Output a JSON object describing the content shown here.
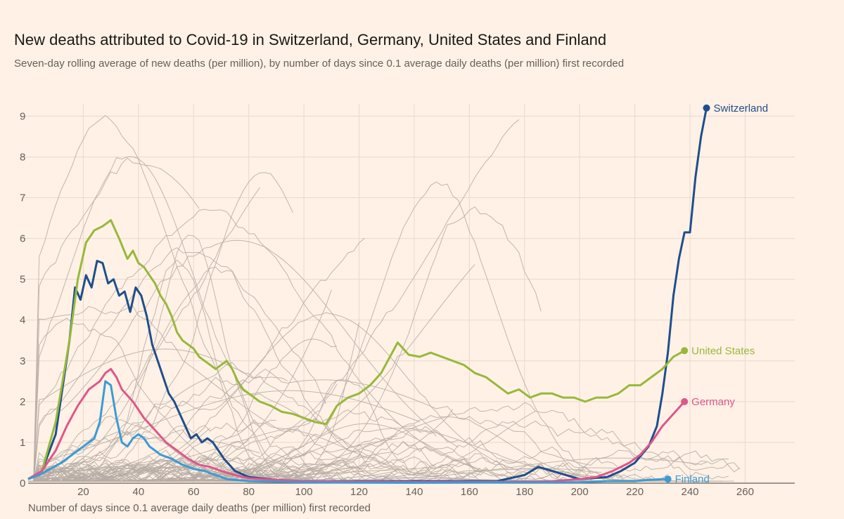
{
  "chart_data": {
    "type": "line",
    "title": "New deaths attributed to Covid-19 in Switzerland, Germany, United States and Finland",
    "subtitle": "Seven-day rolling average of new deaths (per million), by number of days since 0.1 average daily deaths (per million) first recorded",
    "xlabel": "Number of days since 0.1 average daily deaths (per million) first recorded",
    "ylabel": "",
    "xlim": [
      0,
      278
    ],
    "ylim": [
      0,
      9.3
    ],
    "x_ticks": [
      20,
      40,
      60,
      80,
      100,
      120,
      140,
      160,
      180,
      200,
      220,
      240,
      260
    ],
    "x_tick_labels": [
      "20",
      "40",
      "60",
      "80",
      "100",
      "120",
      "140",
      "160",
      "180",
      "200",
      "220",
      "240",
      "260"
    ],
    "y_ticks": [
      0,
      1,
      2,
      3,
      4,
      5,
      6,
      7,
      8,
      9
    ],
    "y_tick_labels": [
      "0",
      "1",
      "2",
      "3",
      "4",
      "5",
      "6",
      "7",
      "8",
      "9"
    ],
    "grid": "horizontal",
    "background_series_color": "#b6aca4",
    "series": [
      {
        "name": "Switzerland",
        "color": "#1f4e8c",
        "points": [
          [
            0,
            0.1
          ],
          [
            5,
            0.3
          ],
          [
            10,
            1.2
          ],
          [
            15,
            3.5
          ],
          [
            17,
            4.8
          ],
          [
            19,
            4.5
          ],
          [
            21,
            5.1
          ],
          [
            23,
            4.8
          ],
          [
            25,
            5.45
          ],
          [
            27,
            5.4
          ],
          [
            29,
            4.9
          ],
          [
            31,
            5.0
          ],
          [
            33,
            4.6
          ],
          [
            35,
            4.7
          ],
          [
            37,
            4.2
          ],
          [
            39,
            4.8
          ],
          [
            41,
            4.6
          ],
          [
            43,
            4.1
          ],
          [
            45,
            3.4
          ],
          [
            47,
            3.0
          ],
          [
            49,
            2.6
          ],
          [
            51,
            2.2
          ],
          [
            53,
            2.0
          ],
          [
            55,
            1.7
          ],
          [
            57,
            1.4
          ],
          [
            59,
            1.1
          ],
          [
            61,
            1.2
          ],
          [
            63,
            1.0
          ],
          [
            65,
            1.1
          ],
          [
            67,
            1.0
          ],
          [
            69,
            0.8
          ],
          [
            71,
            0.6
          ],
          [
            73,
            0.45
          ],
          [
            75,
            0.3
          ],
          [
            80,
            0.15
          ],
          [
            90,
            0.08
          ],
          [
            100,
            0.05
          ],
          [
            120,
            0.05
          ],
          [
            140,
            0.05
          ],
          [
            160,
            0.05
          ],
          [
            170,
            0.05
          ],
          [
            180,
            0.2
          ],
          [
            185,
            0.4
          ],
          [
            190,
            0.3
          ],
          [
            195,
            0.2
          ],
          [
            200,
            0.1
          ],
          [
            210,
            0.15
          ],
          [
            215,
            0.3
          ],
          [
            220,
            0.5
          ],
          [
            225,
            0.9
          ],
          [
            228,
            1.4
          ],
          [
            230,
            2.2
          ],
          [
            232,
            3.2
          ],
          [
            234,
            4.6
          ],
          [
            236,
            5.5
          ],
          [
            238,
            6.15
          ],
          [
            240,
            6.15
          ],
          [
            242,
            7.5
          ],
          [
            244,
            8.5
          ],
          [
            246,
            9.2
          ]
        ]
      },
      {
        "name": "United States",
        "color": "#96b93b",
        "points": [
          [
            0,
            0.1
          ],
          [
            5,
            0.3
          ],
          [
            10,
            1.5
          ],
          [
            15,
            3.5
          ],
          [
            18,
            5.0
          ],
          [
            21,
            5.9
          ],
          [
            24,
            6.2
          ],
          [
            27,
            6.3
          ],
          [
            30,
            6.45
          ],
          [
            33,
            6.0
          ],
          [
            36,
            5.5
          ],
          [
            38,
            5.7
          ],
          [
            40,
            5.4
          ],
          [
            42,
            5.3
          ],
          [
            44,
            5.1
          ],
          [
            46,
            4.9
          ],
          [
            48,
            4.6
          ],
          [
            50,
            4.4
          ],
          [
            52,
            4.1
          ],
          [
            54,
            3.7
          ],
          [
            56,
            3.5
          ],
          [
            58,
            3.4
          ],
          [
            60,
            3.3
          ],
          [
            62,
            3.1
          ],
          [
            64,
            3.0
          ],
          [
            66,
            2.9
          ],
          [
            68,
            2.8
          ],
          [
            70,
            2.9
          ],
          [
            72,
            3.0
          ],
          [
            74,
            2.8
          ],
          [
            76,
            2.5
          ],
          [
            78,
            2.3
          ],
          [
            80,
            2.2
          ],
          [
            84,
            2.0
          ],
          [
            88,
            1.9
          ],
          [
            92,
            1.75
          ],
          [
            96,
            1.7
          ],
          [
            100,
            1.6
          ],
          [
            104,
            1.5
          ],
          [
            108,
            1.45
          ],
          [
            112,
            1.9
          ],
          [
            116,
            2.1
          ],
          [
            120,
            2.2
          ],
          [
            124,
            2.4
          ],
          [
            128,
            2.7
          ],
          [
            132,
            3.2
          ],
          [
            134,
            3.45
          ],
          [
            138,
            3.15
          ],
          [
            142,
            3.1
          ],
          [
            146,
            3.2
          ],
          [
            150,
            3.1
          ],
          [
            154,
            3.0
          ],
          [
            158,
            2.9
          ],
          [
            162,
            2.7
          ],
          [
            166,
            2.6
          ],
          [
            170,
            2.4
          ],
          [
            174,
            2.2
          ],
          [
            178,
            2.3
          ],
          [
            182,
            2.1
          ],
          [
            186,
            2.2
          ],
          [
            190,
            2.2
          ],
          [
            194,
            2.1
          ],
          [
            198,
            2.1
          ],
          [
            202,
            2.0
          ],
          [
            206,
            2.1
          ],
          [
            210,
            2.1
          ],
          [
            214,
            2.2
          ],
          [
            218,
            2.4
          ],
          [
            222,
            2.4
          ],
          [
            226,
            2.6
          ],
          [
            230,
            2.8
          ],
          [
            234,
            3.1
          ],
          [
            238,
            3.25
          ]
        ]
      },
      {
        "name": "Germany",
        "color": "#e0568a",
        "points": [
          [
            0,
            0.1
          ],
          [
            5,
            0.3
          ],
          [
            10,
            0.8
          ],
          [
            14,
            1.4
          ],
          [
            18,
            1.9
          ],
          [
            22,
            2.3
          ],
          [
            26,
            2.5
          ],
          [
            28,
            2.7
          ],
          [
            30,
            2.8
          ],
          [
            32,
            2.6
          ],
          [
            34,
            2.3
          ],
          [
            38,
            2.0
          ],
          [
            42,
            1.6
          ],
          [
            46,
            1.3
          ],
          [
            50,
            1.0
          ],
          [
            54,
            0.8
          ],
          [
            58,
            0.6
          ],
          [
            62,
            0.45
          ],
          [
            66,
            0.4
          ],
          [
            70,
            0.3
          ],
          [
            75,
            0.2
          ],
          [
            80,
            0.12
          ],
          [
            90,
            0.08
          ],
          [
            100,
            0.05
          ],
          [
            120,
            0.04
          ],
          [
            140,
            0.03
          ],
          [
            160,
            0.03
          ],
          [
            180,
            0.04
          ],
          [
            190,
            0.05
          ],
          [
            200,
            0.1
          ],
          [
            206,
            0.15
          ],
          [
            212,
            0.3
          ],
          [
            218,
            0.5
          ],
          [
            222,
            0.7
          ],
          [
            226,
            1.0
          ],
          [
            230,
            1.4
          ],
          [
            234,
            1.7
          ],
          [
            238,
            2.0
          ]
        ]
      },
      {
        "name": "Finland",
        "color": "#3a9bd6",
        "points": [
          [
            0,
            0.1
          ],
          [
            4,
            0.2
          ],
          [
            8,
            0.35
          ],
          [
            12,
            0.5
          ],
          [
            16,
            0.7
          ],
          [
            20,
            0.9
          ],
          [
            24,
            1.1
          ],
          [
            26,
            1.5
          ],
          [
            28,
            2.5
          ],
          [
            30,
            2.4
          ],
          [
            32,
            1.6
          ],
          [
            34,
            1.0
          ],
          [
            36,
            0.9
          ],
          [
            38,
            1.1
          ],
          [
            40,
            1.2
          ],
          [
            42,
            1.1
          ],
          [
            44,
            0.9
          ],
          [
            46,
            0.8
          ],
          [
            48,
            0.7
          ],
          [
            52,
            0.6
          ],
          [
            56,
            0.45
          ],
          [
            60,
            0.35
          ],
          [
            64,
            0.3
          ],
          [
            68,
            0.2
          ],
          [
            72,
            0.1
          ],
          [
            80,
            0.05
          ],
          [
            100,
            0.02
          ],
          [
            140,
            0.01
          ],
          [
            180,
            0.02
          ],
          [
            200,
            0.02
          ],
          [
            210,
            0.05
          ],
          [
            220,
            0.05
          ],
          [
            225,
            0.08
          ],
          [
            230,
            0.1
          ],
          [
            232,
            0.1
          ]
        ]
      }
    ]
  }
}
